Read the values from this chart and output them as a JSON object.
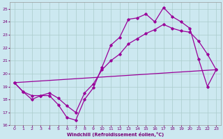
{
  "xlabel": "Windchill (Refroidissement éolien,°C)",
  "background_color": "#cce8f0",
  "grid_color": "#aacccc",
  "line_color": "#990099",
  "xlim": [
    -0.5,
    23.5
  ],
  "ylim": [
    16,
    25.5
  ],
  "yticks": [
    16,
    17,
    18,
    19,
    20,
    21,
    22,
    23,
    24,
    25
  ],
  "xticks": [
    0,
    1,
    2,
    3,
    4,
    5,
    6,
    7,
    8,
    9,
    10,
    11,
    12,
    13,
    14,
    15,
    16,
    17,
    18,
    19,
    20,
    21,
    22,
    23
  ],
  "line1_x": [
    0,
    1,
    2,
    3,
    4,
    5,
    6,
    7,
    8,
    9,
    10,
    11,
    12,
    13,
    14,
    15,
    16,
    17,
    18,
    19,
    20,
    21,
    22,
    23
  ],
  "line1_y": [
    19.3,
    18.6,
    18.0,
    18.3,
    18.3,
    17.6,
    16.6,
    16.4,
    18.0,
    18.9,
    20.5,
    22.2,
    22.8,
    24.2,
    24.3,
    24.6,
    24.0,
    25.1,
    24.4,
    24.0,
    23.5,
    21.1,
    19.0,
    20.3
  ],
  "line2_x": [
    0,
    1,
    2,
    3,
    4,
    5,
    6,
    7,
    8,
    9,
    10,
    11,
    12,
    13,
    14,
    15,
    16,
    17,
    18,
    19,
    20,
    21,
    22,
    23
  ],
  "line2_y": [
    19.3,
    18.6,
    18.3,
    18.3,
    18.5,
    18.1,
    17.5,
    17.0,
    18.5,
    19.2,
    20.3,
    21.0,
    21.5,
    22.3,
    22.7,
    23.1,
    23.4,
    23.8,
    23.5,
    23.3,
    23.2,
    22.5,
    21.5,
    20.3
  ],
  "line3_x": [
    0,
    23
  ],
  "line3_y": [
    19.3,
    20.3
  ],
  "line4_x": [
    0,
    23
  ],
  "line4_y": [
    19.3,
    20.3
  ]
}
